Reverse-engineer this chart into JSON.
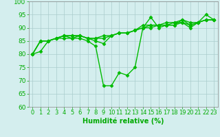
{
  "x": [
    0,
    1,
    2,
    3,
    4,
    5,
    6,
    7,
    8,
    9,
    10,
    11,
    12,
    13,
    14,
    15,
    16,
    17,
    18,
    19,
    20,
    21,
    22,
    23
  ],
  "series": [
    [
      80,
      81,
      85,
      86,
      87,
      86,
      86,
      85,
      83,
      68,
      68,
      73,
      72,
      75,
      90,
      94,
      90,
      91,
      91,
      92,
      90,
      92,
      95,
      93
    ],
    [
      80,
      85,
      85,
      86,
      87,
      87,
      87,
      86,
      86,
      86,
      87,
      88,
      88,
      89,
      90,
      91,
      91,
      91,
      92,
      92,
      91,
      92,
      93,
      93
    ],
    [
      80,
      85,
      85,
      86,
      86,
      86,
      87,
      86,
      86,
      87,
      87,
      88,
      88,
      89,
      90,
      90,
      91,
      91,
      91,
      93,
      92,
      92,
      93,
      93
    ],
    [
      80,
      85,
      85,
      86,
      87,
      87,
      87,
      86,
      85,
      84,
      87,
      88,
      88,
      89,
      91,
      91,
      91,
      92,
      92,
      93,
      91,
      92,
      93,
      93
    ]
  ],
  "line_color": "#00bb00",
  "marker": "D",
  "markersize": 2.5,
  "linewidth": 1.0,
  "xlabel": "Humidité relative (%)",
  "xlim": [
    -0.5,
    23.5
  ],
  "ylim": [
    60,
    100
  ],
  "yticks": [
    60,
    65,
    70,
    75,
    80,
    85,
    90,
    95,
    100
  ],
  "xticks": [
    0,
    1,
    2,
    3,
    4,
    5,
    6,
    7,
    8,
    9,
    10,
    11,
    12,
    13,
    14,
    15,
    16,
    17,
    18,
    19,
    20,
    21,
    22,
    23
  ],
  "background_color": "#d4eeee",
  "grid_color": "#aacccc",
  "tick_color": "#00aa00",
  "xlabel_color": "#00aa00",
  "xlabel_fontsize": 7,
  "tick_fontsize": 6,
  "ytick_fontsize": 6.5
}
